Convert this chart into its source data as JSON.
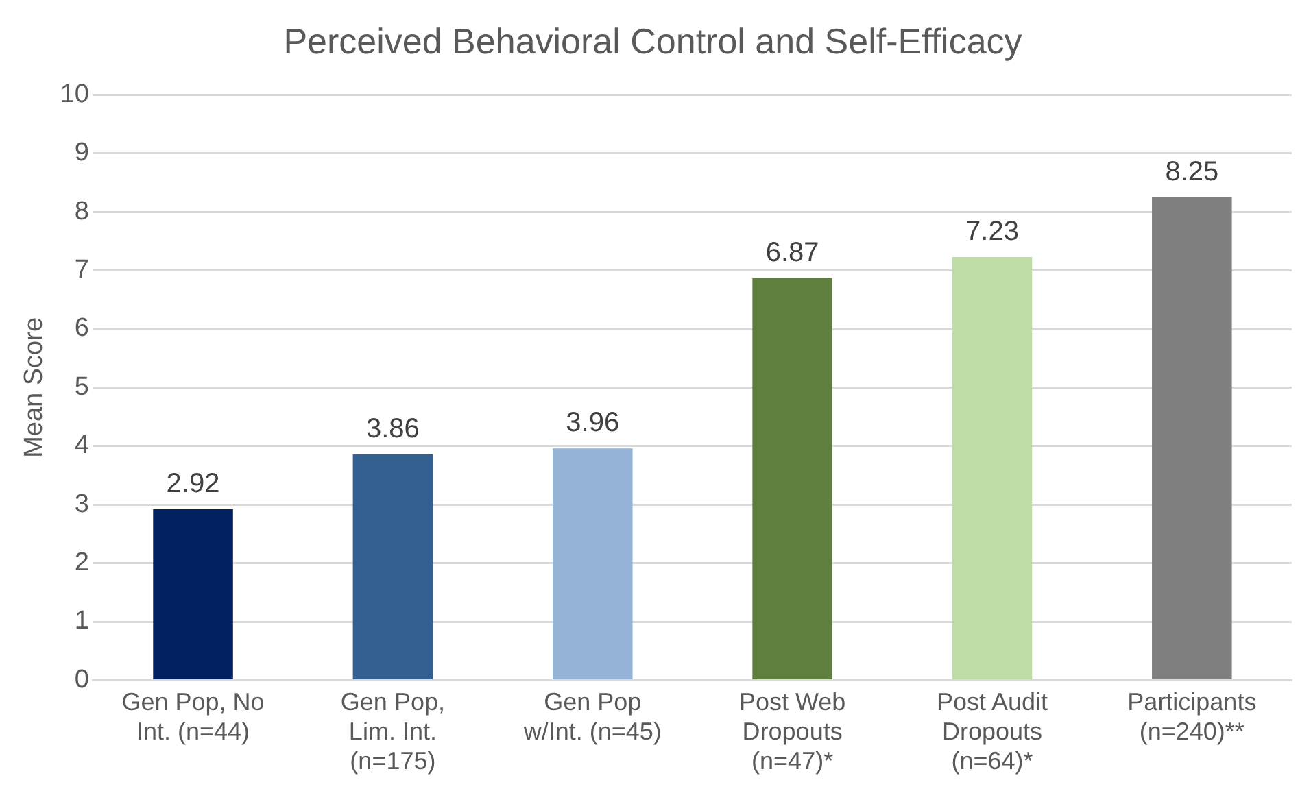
{
  "chart_data": {
    "type": "bar",
    "title": "Perceived Behavioral Control and Self-Efficacy",
    "ylabel": "Mean Score",
    "categories": [
      "Gen Pop, No\nInt. (n=44)",
      "Gen Pop,\nLim. Int.\n(n=175)",
      "Gen Pop\nw/Int. (n=45)",
      "Post Web\nDropouts\n(n=47)*",
      "Post Audit\nDropouts\n(n=64)*",
      "Participants\n(n=240)**"
    ],
    "values": [
      2.92,
      3.86,
      3.96,
      6.87,
      7.23,
      8.25
    ],
    "colors": [
      "#002060",
      "#335f91",
      "#95b3d7",
      "#5f7f3e",
      "#bddca6",
      "#7f7f7f"
    ],
    "ylim": [
      0,
      10
    ],
    "yticks": [
      0,
      1,
      2,
      3,
      4,
      5,
      6,
      7,
      8,
      9,
      10
    ],
    "grid": "y",
    "legend": false,
    "data_labels": true
  }
}
